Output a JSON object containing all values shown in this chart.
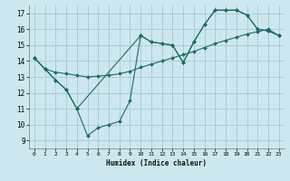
{
  "xlabel": "Humidex (Indice chaleur)",
  "bg_color": "#cce8ee",
  "grid_color": "#aacdd6",
  "line_color": "#1a6b6b",
  "xlim": [
    -0.5,
    23.5
  ],
  "ylim": [
    8.5,
    17.5
  ],
  "xticks": [
    0,
    1,
    2,
    3,
    4,
    5,
    6,
    7,
    8,
    9,
    10,
    11,
    12,
    13,
    14,
    15,
    16,
    17,
    18,
    19,
    20,
    21,
    22,
    23
  ],
  "yticks": [
    9,
    10,
    11,
    12,
    13,
    14,
    15,
    16,
    17
  ],
  "series": [
    {
      "x": [
        0,
        1,
        2,
        3,
        4,
        5,
        6,
        7,
        8,
        9,
        10,
        11,
        12,
        13,
        14,
        15,
        16,
        17,
        18,
        19,
        20,
        21,
        22,
        23
      ],
      "y": [
        14.2,
        13.5,
        12.8,
        12.2,
        11.0,
        9.3,
        9.8,
        10.0,
        10.2,
        11.5,
        15.6,
        15.2,
        15.1,
        15.0,
        13.9,
        15.2,
        16.3,
        17.2,
        17.2,
        17.2,
        16.9,
        16.0,
        15.9,
        15.6
      ]
    },
    {
      "x": [
        0,
        1,
        2,
        3,
        4,
        5,
        6,
        7,
        8,
        9,
        10,
        11,
        12,
        13,
        14,
        15,
        16,
        17,
        18,
        19,
        20,
        21,
        22,
        23
      ],
      "y": [
        14.2,
        13.5,
        13.3,
        13.2,
        13.1,
        13.0,
        13.05,
        13.1,
        13.2,
        13.35,
        13.6,
        13.8,
        14.0,
        14.2,
        14.4,
        14.6,
        14.85,
        15.1,
        15.3,
        15.5,
        15.7,
        15.85,
        16.0,
        15.6
      ]
    },
    {
      "x": [
        0,
        1,
        2,
        3,
        4,
        10,
        11,
        12,
        13,
        14,
        15,
        16,
        17,
        18,
        19,
        20,
        21,
        22,
        23
      ],
      "y": [
        14.2,
        13.5,
        12.8,
        12.2,
        11.0,
        15.6,
        15.2,
        15.1,
        15.0,
        13.9,
        15.2,
        16.3,
        17.2,
        17.2,
        17.2,
        16.9,
        16.0,
        15.9,
        15.6
      ]
    }
  ]
}
